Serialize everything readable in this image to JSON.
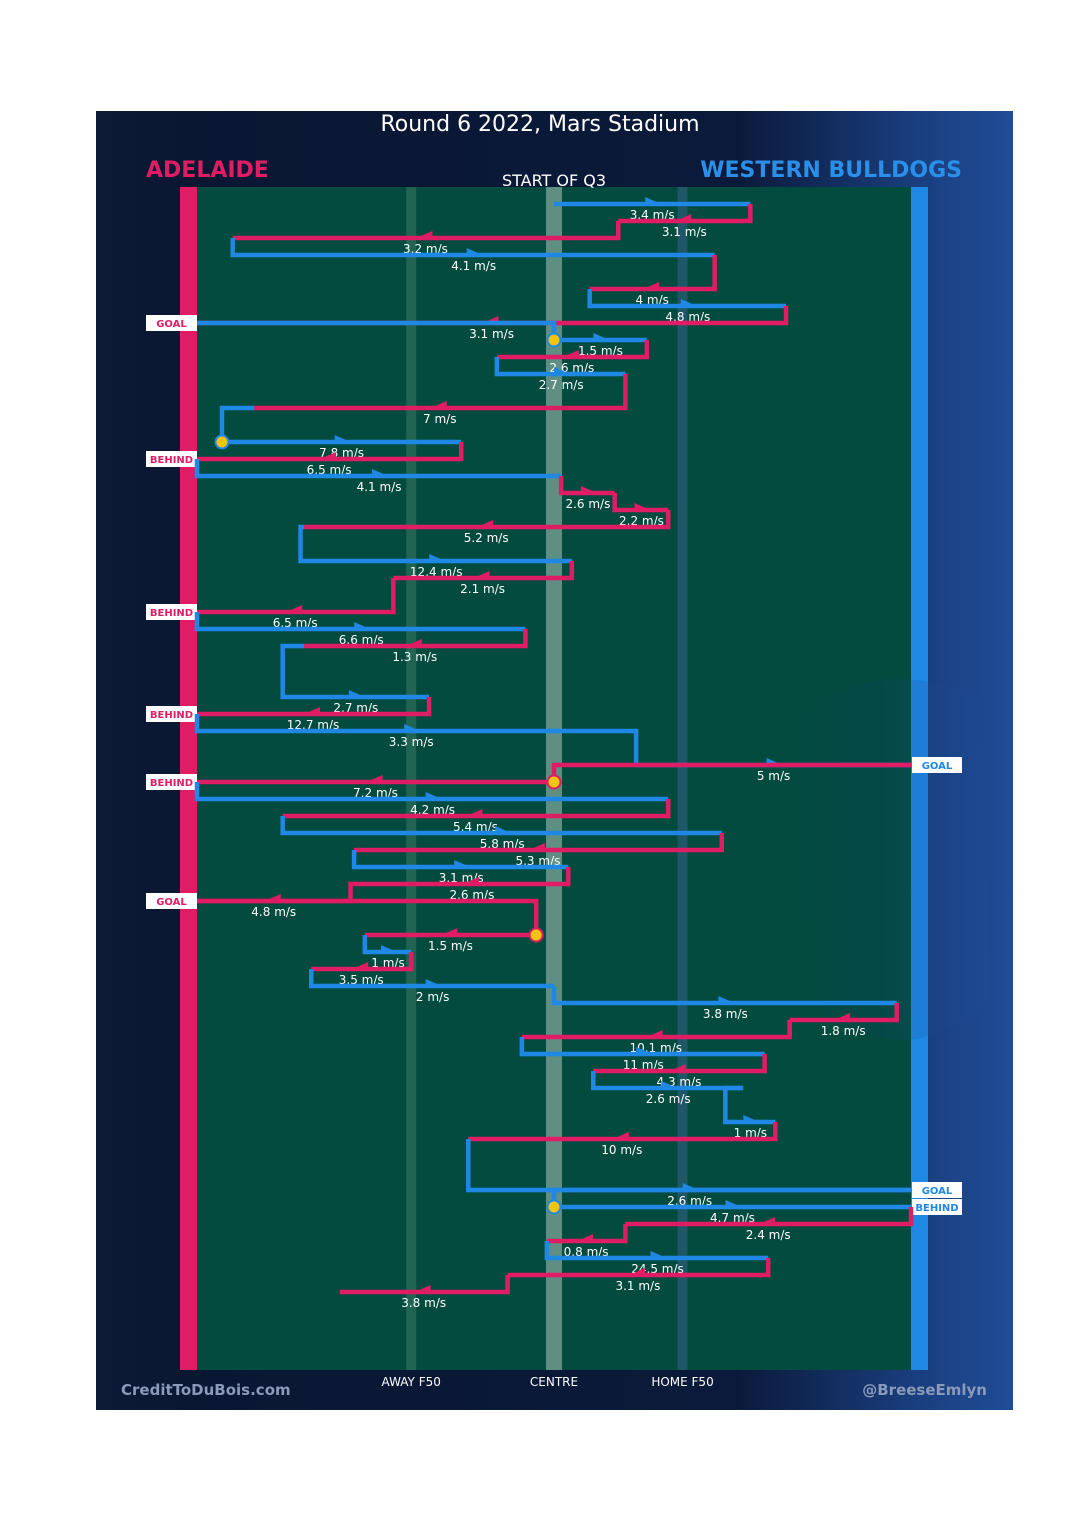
{
  "title": "Round 6 2022, Mars Stadium",
  "credits": {
    "left": "CreditToDuBois.com",
    "right": "@BreeseEmlyn"
  },
  "colors": {
    "home": "#e01d64",
    "away": "#1f88e5",
    "field": "#034a3f",
    "stop": "#f2c40f"
  },
  "chart_data": {
    "type": "line",
    "title": "START OF Q3",
    "teams": {
      "home": "ADELAIDE",
      "away": "WESTERN BULLDOGS"
    },
    "x_axis": {
      "range": [
        -1,
        1
      ],
      "ticks": [
        {
          "x": -0.4,
          "label": "AWAY F50"
        },
        {
          "x": 0,
          "label": "CENTRE"
        },
        {
          "x": 0.36,
          "label": "HOME F50"
        }
      ]
    },
    "y_axis": {
      "description": "chain sequence",
      "range": [
        0,
        69
      ]
    },
    "chains": [
      {
        "team": "away",
        "x_start": 0,
        "x_end": 0.55,
        "row": 1,
        "speed": "3.4 m/s"
      },
      {
        "team": "home",
        "x_start": 0.55,
        "x_end": 0.18,
        "row": 2,
        "speed": "3.1 m/s"
      },
      {
        "team": "home",
        "x_start": 0.18,
        "x_end": -0.9,
        "row": 3,
        "speed": "3.2 m/s"
      },
      {
        "team": "away",
        "x_start": -0.9,
        "x_end": 0.45,
        "row": 4,
        "speed": "4.1 m/s"
      },
      {
        "team": "home",
        "x_start": 0.45,
        "x_end": 0.1,
        "row": 6,
        "speed": "4 m/s"
      },
      {
        "team": "away",
        "x_start": 0.1,
        "x_end": 0.65,
        "row": 7,
        "speed": "4.8 m/s"
      },
      {
        "team": "home",
        "x_start": 0.65,
        "x_end": -1,
        "row": 8,
        "speed": "3.1 m/s",
        "outcome": "GOAL"
      },
      {
        "team": "away",
        "x_start": 0,
        "x_end": 0.26,
        "row": 9,
        "speed": "1.5 m/s"
      },
      {
        "team": "home",
        "x_start": 0.26,
        "x_end": -0.16,
        "row": 10,
        "speed": "2.6 m/s"
      },
      {
        "team": "away",
        "x_start": -0.16,
        "x_end": 0.2,
        "row": 11,
        "speed": "2.7 m/s"
      },
      {
        "team": "home",
        "x_start": 0.2,
        "x_end": -0.84,
        "row": 13,
        "speed": "7 m/s"
      },
      {
        "team": "away",
        "x_start": -0.93,
        "x_end": -0.26,
        "row": 15,
        "speed": "7.8 m/s"
      },
      {
        "team": "home",
        "x_start": -0.26,
        "x_end": -1,
        "row": 16,
        "speed": "6.5 m/s",
        "outcome": "BEHIND"
      },
      {
        "team": "away",
        "x_start": -1,
        "x_end": 0.02,
        "row": 17,
        "speed": "4.1 m/s"
      },
      {
        "team": "home",
        "x_start": 0.02,
        "x_end": 0.17,
        "row": 18,
        "speed": "2.6 m/s"
      },
      {
        "team": "home",
        "x_start": 0.17,
        "x_end": 0.32,
        "row": 19,
        "speed": "2.2 m/s"
      },
      {
        "team": "home",
        "x_start": 0.32,
        "x_end": -0.7,
        "row": 20,
        "speed": "5.2 m/s"
      },
      {
        "team": "away",
        "x_start": -0.71,
        "x_end": 0.05,
        "row": 22,
        "speed": "12.4 m/s"
      },
      {
        "team": "home",
        "x_start": 0.05,
        "x_end": -0.45,
        "row": 23,
        "speed": "2.1 m/s"
      },
      {
        "team": "home",
        "x_start": -0.45,
        "x_end": -1,
        "row": 25,
        "speed": "6.5 m/s",
        "outcome": "BEHIND"
      },
      {
        "team": "away",
        "x_start": -1,
        "x_end": -0.08,
        "row": 26,
        "speed": "6.6 m/s"
      },
      {
        "team": "home",
        "x_start": -0.08,
        "x_end": -0.7,
        "row": 27,
        "speed": "1.3 m/s"
      },
      {
        "team": "away",
        "x_start": -0.76,
        "x_end": -0.35,
        "row": 30,
        "speed": "2.7 m/s"
      },
      {
        "team": "home",
        "x_start": -0.35,
        "x_end": -1,
        "row": 31,
        "speed": "12.7 m/s",
        "outcome": "BEHIND"
      },
      {
        "team": "away",
        "x_start": -1,
        "x_end": 0.2,
        "row": 32,
        "speed": "3.3 m/s"
      },
      {
        "team": "away",
        "x_start": 0.23,
        "x_end": 1,
        "row": 34,
        "speed": "5 m/s",
        "outcome": "GOAL"
      },
      {
        "team": "home",
        "x_start": 0,
        "x_end": -1,
        "row": 35,
        "speed": "7.2 m/s",
        "outcome": "BEHIND"
      },
      {
        "team": "away",
        "x_start": -1,
        "x_end": 0.32,
        "row": 36,
        "speed": "4.2 m/s"
      },
      {
        "team": "home",
        "x_start": 0.32,
        "x_end": -0.76,
        "row": 37,
        "speed": "5.4 m/s"
      },
      {
        "team": "away",
        "x_start": -0.76,
        "x_end": 0.47,
        "row": 38,
        "speed": "5.8 m/s"
      },
      {
        "team": "home",
        "x_start": 0.47,
        "x_end": -0.56,
        "row": 39,
        "speed": "5.3 m/s"
      },
      {
        "team": "away",
        "x_start": -0.56,
        "x_end": 0.04,
        "row": 40,
        "speed": "3.1 m/s"
      },
      {
        "team": "home",
        "x_start": 0.04,
        "x_end": -0.5,
        "row": 41,
        "speed": "2.6 m/s"
      },
      {
        "team": "home",
        "x_start": -0.57,
        "x_end": -1,
        "row": 42,
        "speed": "4.8 m/s",
        "outcome": "GOAL"
      },
      {
        "team": "home",
        "x_start": -0.05,
        "x_end": -0.53,
        "row": 44,
        "speed": "1.5 m/s"
      },
      {
        "team": "away",
        "x_start": -0.53,
        "x_end": -0.4,
        "row": 45,
        "speed": "1 m/s"
      },
      {
        "team": "home",
        "x_start": -0.4,
        "x_end": -0.68,
        "row": 46,
        "speed": "3.5 m/s"
      },
      {
        "team": "away",
        "x_start": -0.68,
        "x_end": 0,
        "row": 47,
        "speed": "2 m/s"
      },
      {
        "team": "away",
        "x_start": 0,
        "x_end": 0.96,
        "row": 48,
        "speed": "3.8 m/s"
      },
      {
        "team": "home",
        "x_start": 0.96,
        "x_end": 0.66,
        "row": 49,
        "speed": "1.8 m/s"
      },
      {
        "team": "home",
        "x_start": 0.66,
        "x_end": -0.09,
        "row": 50,
        "speed": "10.1 m/s"
      },
      {
        "team": "away",
        "x_start": -0.09,
        "x_end": 0.59,
        "row": 51,
        "speed": "11 m/s"
      },
      {
        "team": "home",
        "x_start": 0.59,
        "x_end": 0.11,
        "row": 52,
        "speed": "4.3 m/s"
      },
      {
        "team": "away",
        "x_start": 0.11,
        "x_end": 0.53,
        "row": 53,
        "speed": "2.6 m/s"
      },
      {
        "team": "away",
        "x_start": 0.48,
        "x_end": 0.62,
        "row": 55,
        "speed": "1 m/s"
      },
      {
        "team": "home",
        "x_start": 0.62,
        "x_end": -0.24,
        "row": 56,
        "speed": "10 m/s"
      },
      {
        "team": "away",
        "x_start": -0.24,
        "x_end": 1,
        "row": 59,
        "speed": "2.6 m/s",
        "outcome": "GOAL"
      },
      {
        "team": "away",
        "x_start": 0,
        "x_end": 1,
        "row": 60,
        "speed": "4.7 m/s",
        "outcome": "BEHIND"
      },
      {
        "team": "home",
        "x_start": 1,
        "x_end": 0.2,
        "row": 61,
        "speed": "2.4 m/s"
      },
      {
        "team": "home",
        "x_start": 0.2,
        "x_end": -0.02,
        "row": 62,
        "speed": "0.8 m/s"
      },
      {
        "team": "away",
        "x_start": -0.02,
        "x_end": 0.6,
        "row": 63,
        "speed": "24.5 m/s"
      },
      {
        "team": "home",
        "x_start": 0.6,
        "x_end": -0.13,
        "row": 64,
        "speed": "3.1 m/s"
      },
      {
        "team": "home",
        "x_start": -0.13,
        "x_end": -0.6,
        "row": 65,
        "speed": "3.8 m/s"
      }
    ]
  }
}
